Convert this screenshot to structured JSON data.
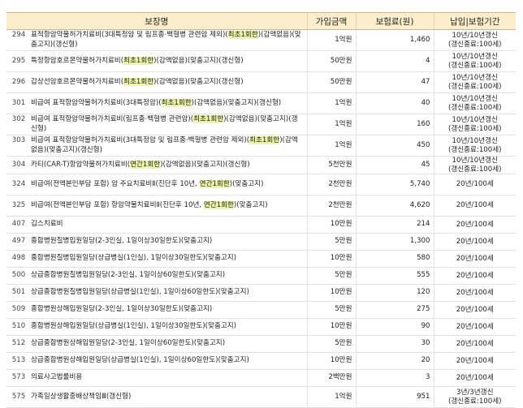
{
  "headers": {
    "name": "보장명",
    "amount": "가입금액",
    "premium": "보험료(원)",
    "term": "납입|보험기간"
  },
  "rows": [
    {
      "code": "294",
      "name_a": "표적항암약물허가치료비(3대특정암 및 림프종·백혈병 관련암 제외)(",
      "hl": "최초1회한",
      "name_b": ")(감액없음)(맞춤고지)(갱신형)",
      "amount": "1억원",
      "premium": "1,460",
      "term_1": "10년/10년갱신",
      "term_2": "(갱신종료:100세)"
    },
    {
      "code": "295",
      "name_a": "특정항암호르몬약물허가치료비(",
      "hl": "최초1회한",
      "name_b": ")(감액없음)(맞춤고지)(갱신형)",
      "amount": "50만원",
      "premium": "4",
      "term_1": "10년/10년갱신",
      "term_2": "(갱신종료:100세)"
    },
    {
      "code": "296",
      "name_a": "갑상선암호르몬약물허가치료비(",
      "hl": "최초1회한",
      "name_b": ")(감액없음)(맞춤고지)(갱신형)",
      "amount": "50만원",
      "premium": "47",
      "term_1": "10년/10년갱신",
      "term_2": "(갱신종료:100세)"
    },
    {
      "code": "301",
      "name_a": "비급여 표적항암약물허가치료비(3대특정암)(",
      "hl": "최초1회한",
      "name_b": ")(감액없음)(맞춤고지)(갱신형)",
      "amount": "1억원",
      "premium": "40",
      "term_1": "10년/10년갱신",
      "term_2": "(갱신종료:100세)"
    },
    {
      "code": "302",
      "name_a": "비급여 표적항암약물허가치료비(림프종·백혈병 관련암)(",
      "hl": "최초1회한",
      "name_b": ")(감액없음)(맞춤고지)(갱신형)",
      "amount": "1억원",
      "premium": "160",
      "term_1": "10년/10년갱신",
      "term_2": "(갱신종료:100세)"
    },
    {
      "code": "303",
      "name_a": "비급여 표적항암약물허가치료비(3대특정암 및 림프종·백혈병 관련암 제외)(",
      "hl": "최초1회한",
      "name_b": ")(감액없음)(맞춤고지)(갱신형)",
      "amount": "1억원",
      "premium": "450",
      "term_1": "10년/10년갱신",
      "term_2": "(갱신종료:100세)"
    },
    {
      "code": "304",
      "name_a": "카티(CAR-T)항암약물허가치료비(",
      "hl": "연간1회한",
      "name_b": ")(감액없음)(맞춤고지)(갱신형)",
      "amount": "5천만원",
      "premium": "45",
      "term_1": "10년/10년갱신",
      "term_2": "(갱신종료:100세)"
    },
    {
      "code": "324",
      "name_a": "비급여(전액본인부담 포함) 암 주요치료비Ⅱ(진단후 10년, ",
      "hl": "연간1회한",
      "name_b": ")(맞춤고지)",
      "amount": "2천만원",
      "premium": "5,740",
      "term_1": "20년/100세",
      "term_2": ""
    },
    {
      "code": "325",
      "name_a": "비급여(전액본인부담 포함) 항암약물치료비Ⅱ(진단후 10년, ",
      "hl": "연간1회한",
      "name_b": ")(맞춤고지)",
      "amount": "2천만원",
      "premium": "4,620",
      "term_1": "20년/100세",
      "term_2": ""
    },
    {
      "code": "407",
      "name_a": "깁스치료비",
      "hl": "",
      "name_b": "",
      "amount": "10만원",
      "premium": "214",
      "term_1": "20년/100세",
      "term_2": ""
    },
    {
      "code": "497",
      "name_a": "종합병원질병입원일당(2-3인실, 1일이상30일한도)(맞춤고지)",
      "hl": "",
      "name_b": "",
      "amount": "5만원",
      "premium": "1,300",
      "term_1": "20년/100세",
      "term_2": ""
    },
    {
      "code": "498",
      "name_a": "종합병원질병입원일당(상급병실(1인실), 1일이상30일한도)(맞춤고지)",
      "hl": "",
      "name_b": "",
      "amount": "10만원",
      "premium": "580",
      "term_1": "20년/100세",
      "term_2": ""
    },
    {
      "code": "500",
      "name_a": "상급종합병원질병입원일당(2-3인실, 1일이상60일한도)(맞춤고지)",
      "hl": "",
      "name_b": "",
      "amount": "5만원",
      "premium": "555",
      "term_1": "20년/100세",
      "term_2": ""
    },
    {
      "code": "501",
      "name_a": "상급종합병원질병입원일당(상급병실(1인실), 1일이상60일한도)(맞춤고지)",
      "hl": "",
      "name_b": "",
      "amount": "10만원",
      "premium": "120",
      "term_1": "20년/100세",
      "term_2": ""
    },
    {
      "code": "509",
      "name_a": "종합병원상해입원일당(2-3인실, 1일이상30일한도)(맞춤고지)",
      "hl": "",
      "name_b": "",
      "amount": "5만원",
      "premium": "275",
      "term_1": "20년/100세",
      "term_2": ""
    },
    {
      "code": "510",
      "name_a": "종합병원상해입원일당(상급병실(1인실), 1일이상30일한도)(맞춤고지)",
      "hl": "",
      "name_b": "",
      "amount": "10만원",
      "premium": "90",
      "term_1": "20년/100세",
      "term_2": ""
    },
    {
      "code": "512",
      "name_a": "상급종합병원상해입원일당(2-3인실, 1일이상60일한도)(맞춤고지)",
      "hl": "",
      "name_b": "",
      "amount": "5만원",
      "premium": "30",
      "term_1": "20년/100세",
      "term_2": ""
    },
    {
      "code": "513",
      "name_a": "상급종합병원상해입원일당(상급병실(1인실), 1일이상60일한도)(맞춤고지)",
      "hl": "",
      "name_b": "",
      "amount": "10만원",
      "premium": "20",
      "term_1": "20년/100세",
      "term_2": ""
    },
    {
      "code": "573",
      "name_a": "의료사고법률비용",
      "hl": "",
      "name_b": "",
      "amount": "2백만원",
      "premium": "3",
      "term_1": "20년/100세",
      "term_2": ""
    },
    {
      "code": "575",
      "name_a": "가족일상생활중배상책임Ⅲ(갱신형)",
      "hl": "",
      "name_b": "",
      "amount": "1억원",
      "premium": "951",
      "term_1": "3년/3년갱신",
      "term_2": "(갱신종료:100세)"
    }
  ]
}
